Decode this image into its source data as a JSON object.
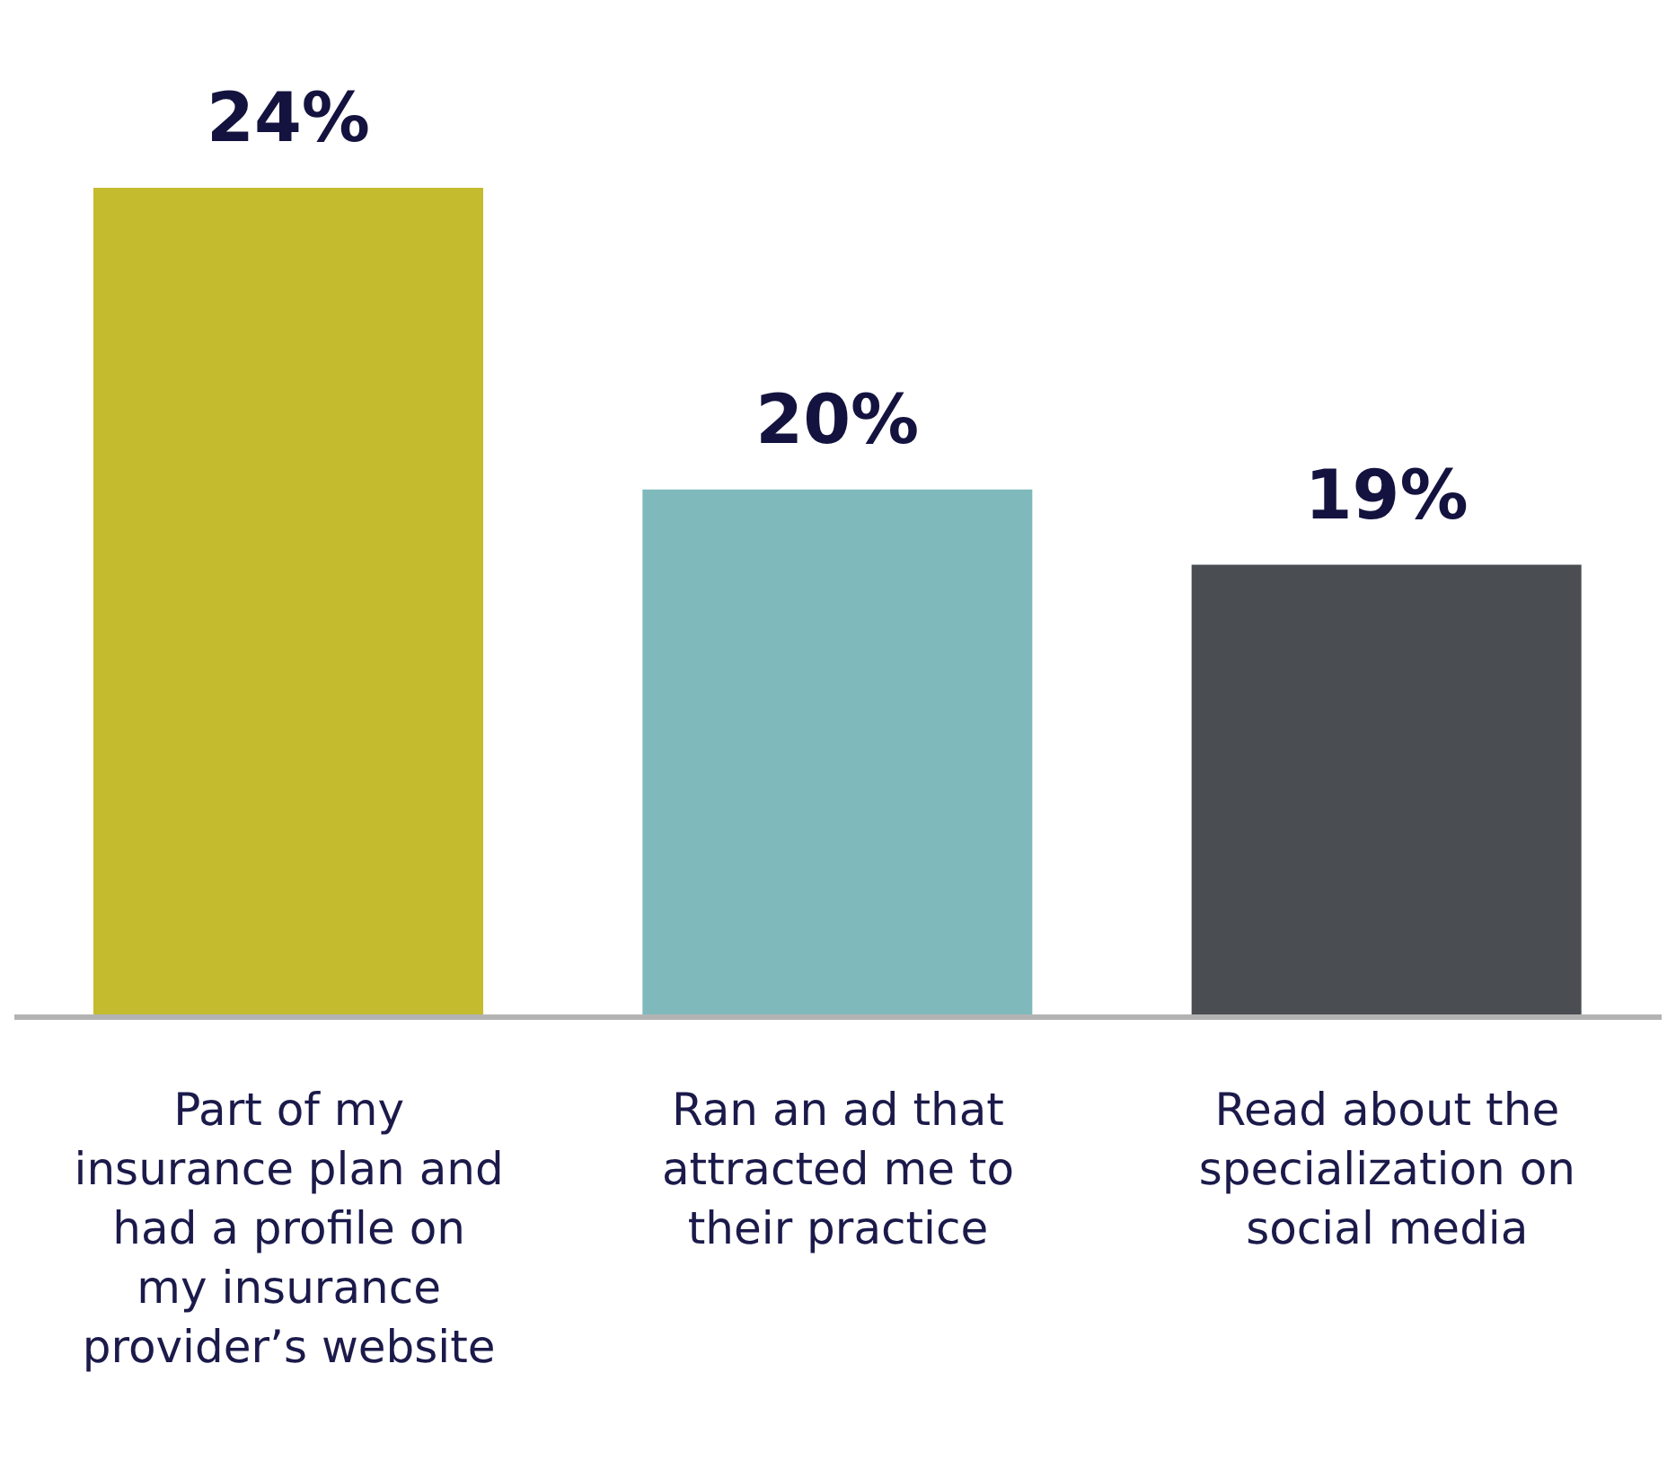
{
  "chart_data": {
    "type": "bar",
    "categories": [
      "Part of my insurance plan and had a profile on my insurance provider’s website",
      "Ran an ad that attracted me to their practice",
      "Read about the specialization on social media"
    ],
    "values": [
      24,
      20,
      19
    ],
    "colors": [
      "#c4bb2e",
      "#7fb9bc",
      "#4a4d52"
    ],
    "value_labels": [
      "24%",
      "20%",
      "19%"
    ],
    "ylim": [
      13,
      26.3
    ],
    "tick_labels": "x"
  }
}
